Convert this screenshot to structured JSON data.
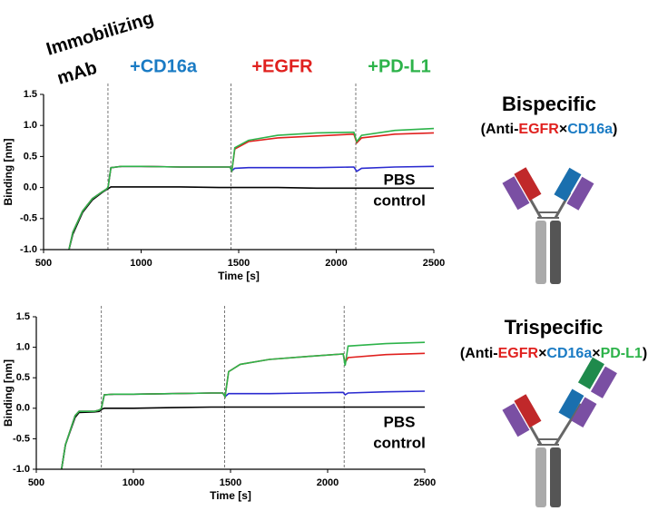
{
  "chart_data": [
    {
      "type": "line",
      "corner_label": [
        "Immobilizing",
        "mAb"
      ],
      "annotations": [
        {
          "text": "+CD16a",
          "color": "#1a7bc4"
        },
        {
          "text": "+EGFR",
          "color": "#e0201e"
        },
        {
          "text": "+PD-L1",
          "color": "#2db34a"
        }
      ],
      "inner_label": [
        "PBS",
        "control"
      ],
      "panel_title": "Bispecific",
      "panel_subtitle": [
        {
          "text": "(Anti-",
          "color": "#000000"
        },
        {
          "text": "EGFR",
          "color": "#e0201e"
        },
        {
          "text": "×",
          "color": "#000000"
        },
        {
          "text": "CD16a",
          "color": "#1a7bc4"
        },
        {
          "text": ")",
          "color": "#000000"
        }
      ],
      "x_label": "Time [s]",
      "y_label": "Binding [nm]",
      "xlim": [
        500,
        2500
      ],
      "ylim": [
        -1.0,
        1.5
      ],
      "xticks": [
        500,
        1000,
        1500,
        2000,
        2500
      ],
      "yticks": [
        {
          "value": -1.0,
          "label": "-1.0"
        },
        -0.5,
        {
          "value": 0.0,
          "label": "0.0"
        },
        0.5,
        {
          "value": 1.0,
          "label": "1.0"
        },
        1.5
      ],
      "vlines": [
        830,
        1460,
        2100
      ],
      "x": [
        630,
        650,
        700,
        750,
        800,
        820,
        830,
        845,
        900,
        1000,
        1200,
        1400,
        1455,
        1465,
        1480,
        1550,
        1700,
        1900,
        2090,
        2105,
        2130,
        2300,
        2500
      ],
      "series": [
        {
          "color": "#000000",
          "values": [
            -1,
            -0.75,
            -0.4,
            -0.2,
            -0.08,
            -0.04,
            -0.02,
            0.01,
            0.01,
            0.01,
            0.01,
            0.0,
            0.0,
            0.0,
            0.0,
            0.0,
            0.0,
            -0.01,
            -0.01,
            -0.01,
            -0.01,
            -0.01,
            -0.01
          ]
        },
        {
          "color": "#2b2bd0",
          "values": [
            -1,
            -0.72,
            -0.38,
            -0.18,
            -0.07,
            -0.03,
            0.0,
            0.32,
            0.34,
            0.34,
            0.33,
            0.33,
            0.33,
            0.27,
            0.31,
            0.32,
            0.32,
            0.32,
            0.33,
            0.26,
            0.31,
            0.33,
            0.34
          ]
        },
        {
          "color": "#e0201e",
          "values": [
            -1,
            -0.72,
            -0.38,
            -0.18,
            -0.07,
            -0.03,
            0.0,
            0.32,
            0.34,
            0.34,
            0.33,
            0.33,
            0.33,
            0.27,
            0.62,
            0.74,
            0.8,
            0.83,
            0.86,
            0.72,
            0.8,
            0.86,
            0.88
          ]
        },
        {
          "color": "#2db34a",
          "values": [
            -1,
            -0.72,
            -0.38,
            -0.18,
            -0.07,
            -0.03,
            0.0,
            0.32,
            0.34,
            0.34,
            0.33,
            0.33,
            0.33,
            0.27,
            0.64,
            0.76,
            0.84,
            0.88,
            0.89,
            0.74,
            0.84,
            0.92,
            0.95
          ]
        }
      ]
    },
    {
      "type": "line",
      "inner_label": [
        "PBS",
        "control"
      ],
      "panel_title": "Trispecific",
      "panel_subtitle": [
        {
          "text": "(Anti-",
          "color": "#000000"
        },
        {
          "text": "EGFR",
          "color": "#e0201e"
        },
        {
          "text": "×",
          "color": "#000000"
        },
        {
          "text": "CD16a",
          "color": "#1a7bc4"
        },
        {
          "text": "×",
          "color": "#000000"
        },
        {
          "text": "PD-L1",
          "color": "#2db34a"
        },
        {
          "text": ")",
          "color": "#000000"
        }
      ],
      "x_label": "Time [s]",
      "y_label": "Binding [nm]",
      "xlim": [
        500,
        2500
      ],
      "ylim": [
        -1.0,
        1.5
      ],
      "xticks": [
        500,
        1000,
        1500,
        2000,
        2500
      ],
      "yticks": [
        {
          "value": -1.0,
          "label": "-1.0"
        },
        -0.5,
        {
          "value": 0.0,
          "label": "0.0"
        },
        0.5,
        {
          "value": 1.0,
          "label": "1.0"
        },
        1.5
      ],
      "vlines": [
        835,
        1470,
        2085
      ],
      "x": [
        630,
        650,
        700,
        720,
        800,
        825,
        835,
        850,
        900,
        1000,
        1200,
        1400,
        1460,
        1472,
        1490,
        1550,
        1700,
        1900,
        2080,
        2090,
        2105,
        2300,
        2500
      ],
      "series": [
        {
          "color": "#000000",
          "values": [
            -1,
            -0.6,
            -0.15,
            -0.07,
            -0.06,
            -0.05,
            -0.02,
            0.0,
            0.0,
            0.0,
            0.01,
            0.02,
            0.02,
            0.02,
            0.02,
            0.02,
            0.02,
            0.02,
            0.02,
            0.02,
            0.02,
            0.02,
            0.02
          ]
        },
        {
          "color": "#2b2bd0",
          "values": [
            -1,
            -0.6,
            -0.12,
            -0.05,
            -0.05,
            -0.03,
            0.0,
            0.22,
            0.23,
            0.23,
            0.24,
            0.25,
            0.25,
            0.19,
            0.24,
            0.24,
            0.24,
            0.25,
            0.26,
            0.22,
            0.25,
            0.27,
            0.28
          ]
        },
        {
          "color": "#e0201e",
          "values": [
            -1,
            -0.6,
            -0.12,
            -0.05,
            -0.05,
            -0.03,
            0.0,
            0.22,
            0.23,
            0.23,
            0.24,
            0.25,
            0.25,
            0.19,
            0.6,
            0.72,
            0.8,
            0.85,
            0.89,
            0.75,
            0.83,
            0.88,
            0.9
          ]
        },
        {
          "color": "#2db34a",
          "values": [
            -1,
            -0.6,
            -0.12,
            -0.05,
            -0.05,
            -0.03,
            0.0,
            0.22,
            0.23,
            0.23,
            0.24,
            0.25,
            0.25,
            0.19,
            0.6,
            0.72,
            0.8,
            0.85,
            0.89,
            0.7,
            1.02,
            1.06,
            1.08
          ]
        }
      ]
    }
  ]
}
